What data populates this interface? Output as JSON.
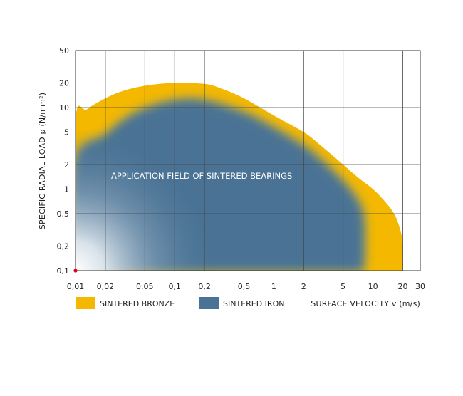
{
  "chart_data": {
    "type": "area",
    "title": "",
    "xlabel": "SURFACE VELOCITY v (m/s)",
    "ylabel": "SPECIFIC RADIAL LOAD p (N/mm²)",
    "x_scale": "log",
    "y_scale": "log",
    "xlim": [
      0.01,
      30
    ],
    "ylim": [
      0.1,
      50
    ],
    "x_ticks": [
      {
        "value": 0.01,
        "label": "0,01"
      },
      {
        "value": 0.02,
        "label": "0,02"
      },
      {
        "value": 0.05,
        "label": "0,05"
      },
      {
        "value": 0.1,
        "label": "0,1"
      },
      {
        "value": 0.2,
        "label": "0,2"
      },
      {
        "value": 0.5,
        "label": "0,5"
      },
      {
        "value": 1,
        "label": "1"
      },
      {
        "value": 2,
        "label": "2"
      },
      {
        "value": 5,
        "label": "5"
      },
      {
        "value": 10,
        "label": "10"
      },
      {
        "value": 20,
        "label": "20"
      },
      {
        "value": 30,
        "label": "30"
      }
    ],
    "y_ticks": [
      {
        "value": 0.1,
        "label": "0,1"
      },
      {
        "value": 0.2,
        "label": "0,2"
      },
      {
        "value": 0.5,
        "label": "0,5"
      },
      {
        "value": 1,
        "label": "1"
      },
      {
        "value": 2,
        "label": "2"
      },
      {
        "value": 5,
        "label": "5"
      },
      {
        "value": 10,
        "label": "10"
      },
      {
        "value": 20,
        "label": "20"
      },
      {
        "value": 50,
        "label": "50"
      }
    ],
    "grid": true,
    "annotation": "APPLICATION FIELD OF SINTERED BEARINGS",
    "series": [
      {
        "name": "SINTERED BRONZE",
        "color": "#f5b800",
        "boundary": [
          [
            0.01,
            0.1
          ],
          [
            0.01,
            7
          ],
          [
            0.013,
            9.5
          ],
          [
            0.02,
            13
          ],
          [
            0.03,
            16
          ],
          [
            0.05,
            18.5
          ],
          [
            0.08,
            19.8
          ],
          [
            0.1,
            20
          ],
          [
            0.2,
            19.5
          ],
          [
            0.3,
            17
          ],
          [
            0.5,
            13
          ],
          [
            1,
            8
          ],
          [
            2,
            5
          ],
          [
            3,
            3.4
          ],
          [
            5,
            2
          ],
          [
            7,
            1.4
          ],
          [
            10,
            1
          ],
          [
            13,
            0.72
          ],
          [
            16,
            0.52
          ],
          [
            18,
            0.38
          ],
          [
            20,
            0.22
          ],
          [
            20,
            0.1
          ]
        ]
      },
      {
        "name": "SINTERED IRON",
        "color": "#4a7294",
        "boundary": [
          [
            0.01,
            0.1
          ],
          [
            0.01,
            2.2
          ],
          [
            0.02,
            4.5
          ],
          [
            0.03,
            6.8
          ],
          [
            0.05,
            9.5
          ],
          [
            0.1,
            12
          ],
          [
            0.2,
            12
          ],
          [
            0.5,
            8.5
          ],
          [
            1,
            5.5
          ],
          [
            2,
            3.3
          ],
          [
            3,
            2.2
          ],
          [
            5,
            1.2
          ],
          [
            7,
            0.7
          ],
          [
            8,
            0.4
          ],
          [
            8,
            0.1
          ]
        ]
      }
    ],
    "marker": {
      "x": 0.01,
      "y": 0.1,
      "color": "#e2001a"
    }
  }
}
